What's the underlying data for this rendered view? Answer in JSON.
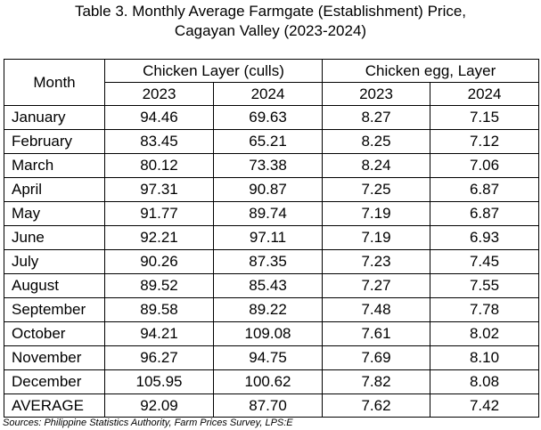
{
  "title_line1": "Table 3. Monthly Average Farmgate (Establishment) Price,",
  "title_line2": "Cagayan Valley (2023-2024)",
  "header": {
    "month": "Month",
    "group1": "Chicken Layer (culls)",
    "group2": "Chicken egg, Layer",
    "year1": "2023",
    "year2": "2024",
    "year3": "2023",
    "year4": "2024"
  },
  "rows": [
    {
      "month": "January",
      "v1": "94.46",
      "v2": "69.63",
      "v3": "8.27",
      "v4": "7.15"
    },
    {
      "month": "February",
      "v1": "83.45",
      "v2": "65.21",
      "v3": "8.25",
      "v4": "7.12"
    },
    {
      "month": "March",
      "v1": "80.12",
      "v2": "73.38",
      "v3": "8.24",
      "v4": "7.06"
    },
    {
      "month": "April",
      "v1": "97.31",
      "v2": "90.87",
      "v3": "7.25",
      "v4": "6.87"
    },
    {
      "month": "May",
      "v1": "91.77",
      "v2": "89.74",
      "v3": "7.19",
      "v4": "6.87"
    },
    {
      "month": "June",
      "v1": "92.21",
      "v2": "97.11",
      "v3": "7.19",
      "v4": "6.93"
    },
    {
      "month": "July",
      "v1": "90.26",
      "v2": "87.35",
      "v3": "7.23",
      "v4": "7.45"
    },
    {
      "month": "August",
      "v1": "89.52",
      "v2": "85.43",
      "v3": "7.27",
      "v4": "7.55"
    },
    {
      "month": "September",
      "v1": "89.58",
      "v2": "89.22",
      "v3": "7.48",
      "v4": "7.78"
    },
    {
      "month": "October",
      "v1": "94.21",
      "v2": "109.08",
      "v3": "7.61",
      "v4": "8.02"
    },
    {
      "month": "November",
      "v1": "96.27",
      "v2": "94.75",
      "v3": "7.69",
      "v4": "8.10"
    },
    {
      "month": "December",
      "v1": "105.95",
      "v2": "100.62",
      "v3": "7.82",
      "v4": "8.08"
    }
  ],
  "average": {
    "month": "AVERAGE",
    "v1": "92.09",
    "v2": "87.70",
    "v3": "7.62",
    "v4": "7.42"
  },
  "source": "Sources: Philippine Statistics Authority, Farm Prices Survey, LPS:E"
}
